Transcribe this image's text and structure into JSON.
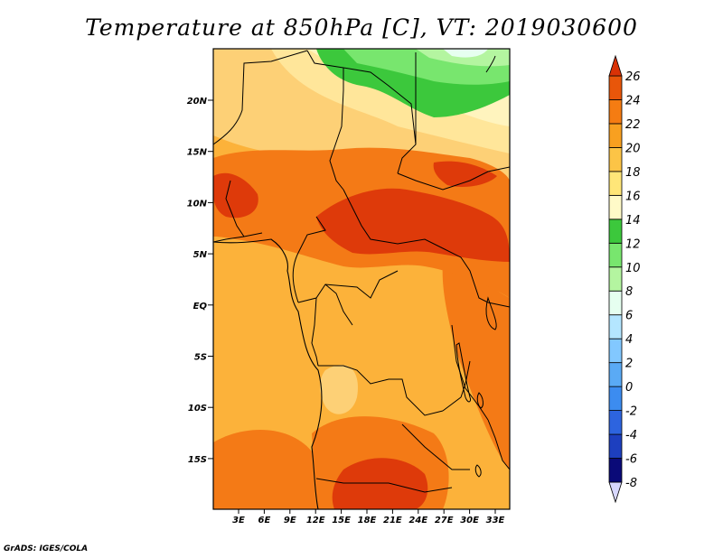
{
  "title": "Temperature at 850hPa [C], VT: 2019030600",
  "credit": "GrADS: IGES/COLA",
  "lat_labels": [
    "20N",
    "15N",
    "10N",
    "5N",
    "EQ",
    "5S",
    "10S",
    "15S"
  ],
  "lon_labels": [
    "3E",
    "6E",
    "9E",
    "12E",
    "15E",
    "18E",
    "21E",
    "24E",
    "27E",
    "30E",
    "33E"
  ],
  "colorbar": {
    "labels": [
      "26",
      "24",
      "22",
      "20",
      "18",
      "16",
      "14",
      "12",
      "10",
      "8",
      "6",
      "4",
      "2",
      "0",
      "-2",
      "-4",
      "-6",
      "-8"
    ],
    "colors": [
      "#d8d8ff",
      "#0a0a78",
      "#1d3fbf",
      "#2d64df",
      "#3c8cf0",
      "#5aaaf5",
      "#82c8ff",
      "#b4e6ff",
      "#e6fff0",
      "#b4f5a0",
      "#78e66e",
      "#3cc83c",
      "#fffac8",
      "#ffe678",
      "#fcc446",
      "#f8a020",
      "#f57c12",
      "#e8560a",
      "#d93206"
    ]
  },
  "legend_marks": {
    "stroke": "#000000"
  }
}
